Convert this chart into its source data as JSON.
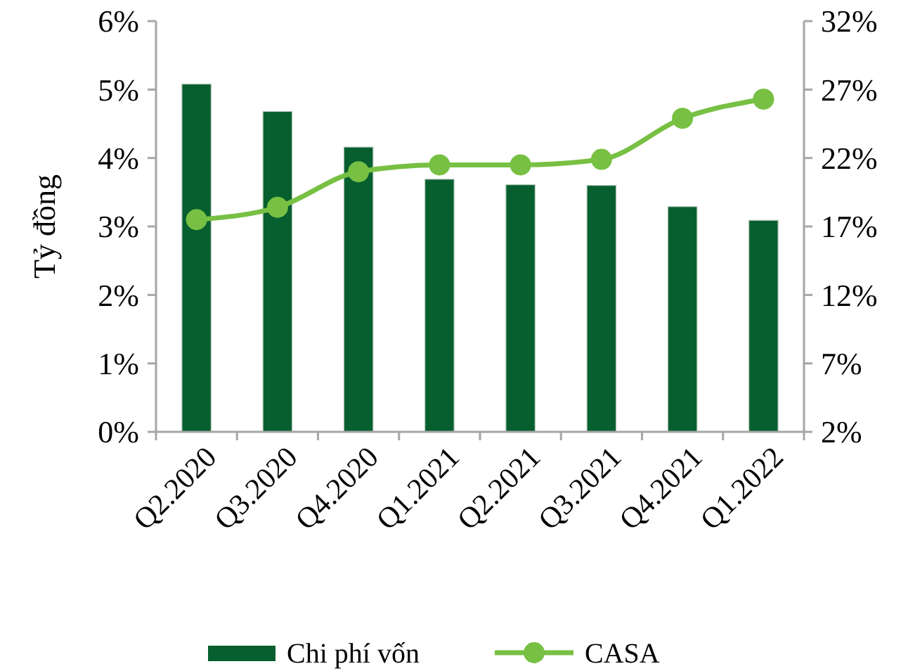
{
  "chart_data": {
    "type": "bar",
    "ylabel": "Tỷ đồng",
    "categories": [
      "Q2.2020",
      "Q3.2020",
      "Q4.2020",
      "Q1.2021",
      "Q2.2021",
      "Q3.2021",
      "Q4.2021",
      "Q1.2022"
    ],
    "series": [
      {
        "name": "Chi phí vốn",
        "color": "#075f2f",
        "values": [
          5.08,
          4.68,
          4.16,
          3.69,
          3.61,
          3.6,
          3.29,
          3.09
        ]
      },
      {
        "name": "CASA",
        "type": "line",
        "axis": "y2",
        "color": "#77c043",
        "values": [
          17.5,
          18.4,
          21.0,
          21.5,
          21.5,
          21.9,
          24.9,
          26.3
        ]
      }
    ],
    "ylim": [
      0,
      6
    ],
    "yticks": [
      {
        "value": 0,
        "label": "0%"
      },
      {
        "value": 1,
        "label": "1%"
      },
      {
        "value": 2,
        "label": "2%"
      },
      {
        "value": 3,
        "label": "3%"
      },
      {
        "value": 4,
        "label": "4%"
      },
      {
        "value": 5,
        "label": "5%"
      },
      {
        "value": 6,
        "label": "6%"
      }
    ],
    "y2lim": [
      2,
      32
    ],
    "y2ticks": [
      {
        "value": 2,
        "label": "2%"
      },
      {
        "value": 7,
        "label": "7%"
      },
      {
        "value": 12,
        "label": "12%"
      },
      {
        "value": 17,
        "label": "17%"
      },
      {
        "value": 22,
        "label": "22%"
      },
      {
        "value": 27,
        "label": "27%"
      },
      {
        "value": 32,
        "label": "32%"
      }
    ],
    "marker": "circle",
    "line_style": "solid",
    "grid": false,
    "legend": "bottom"
  }
}
